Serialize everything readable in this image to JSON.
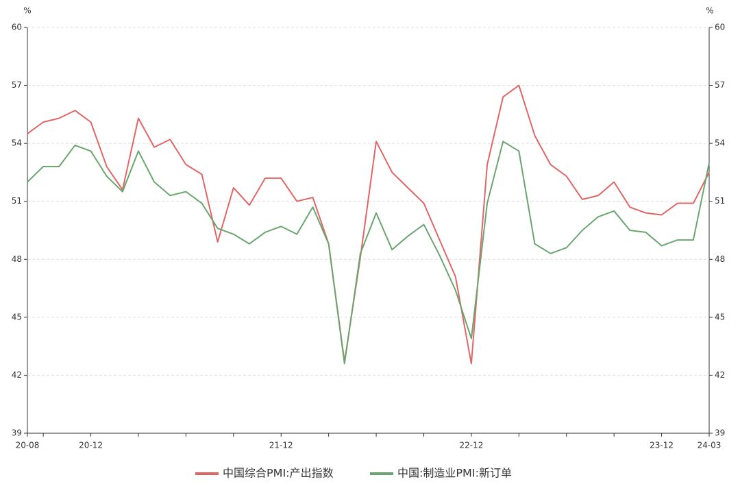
{
  "chart_data": {
    "type": "line",
    "categories": [
      "20-08",
      null,
      null,
      null,
      "20-12",
      null,
      null,
      null,
      null,
      null,
      null,
      null,
      null,
      null,
      null,
      null,
      "21-12",
      null,
      null,
      null,
      null,
      null,
      null,
      null,
      null,
      null,
      null,
      null,
      "22-12",
      null,
      null,
      null,
      null,
      null,
      null,
      null,
      null,
      null,
      null,
      null,
      "23-12",
      null,
      null,
      "24-03"
    ],
    "y_unit": "%",
    "y2_unit": "%",
    "ylim": [
      39,
      60
    ],
    "yticks": [
      39,
      42,
      45,
      48,
      51,
      54,
      57,
      60
    ],
    "y2lim": [
      39,
      60
    ],
    "y2ticks": [
      39,
      42,
      45,
      48,
      51,
      54,
      57,
      60
    ],
    "grid": true,
    "legend": "bottom",
    "series": [
      {
        "name": "中国综合PMI:产出指数",
        "color": "#e06666",
        "values": [
          54.5,
          55.1,
          55.3,
          55.7,
          55.1,
          52.8,
          51.6,
          55.3,
          53.8,
          54.2,
          52.9,
          52.4,
          48.9,
          51.7,
          50.8,
          52.2,
          52.2,
          51.0,
          51.2,
          48.8,
          42.7,
          48.1,
          54.1,
          52.5,
          51.7,
          50.9,
          49.0,
          47.1,
          42.6,
          52.9,
          56.4,
          57.0,
          54.4,
          52.9,
          52.3,
          51.1,
          51.3,
          52.0,
          50.7,
          50.4,
          50.3,
          50.9,
          50.9,
          52.5
        ]
      },
      {
        "name": "中国:制造业PMI:新订单",
        "color": "#6aa56f",
        "axis": "y2",
        "values": [
          52.0,
          52.8,
          52.8,
          53.9,
          53.6,
          52.3,
          51.5,
          53.6,
          52.0,
          51.3,
          51.5,
          50.9,
          49.6,
          49.3,
          48.8,
          49.4,
          49.7,
          49.3,
          50.7,
          48.8,
          42.6,
          48.3,
          50.4,
          48.5,
          49.2,
          49.8,
          48.2,
          46.4,
          43.9,
          50.9,
          54.1,
          53.6,
          48.8,
          48.3,
          48.6,
          49.5,
          50.2,
          50.5,
          49.5,
          49.4,
          48.7,
          49.0,
          49.0,
          53.0
        ]
      }
    ]
  }
}
